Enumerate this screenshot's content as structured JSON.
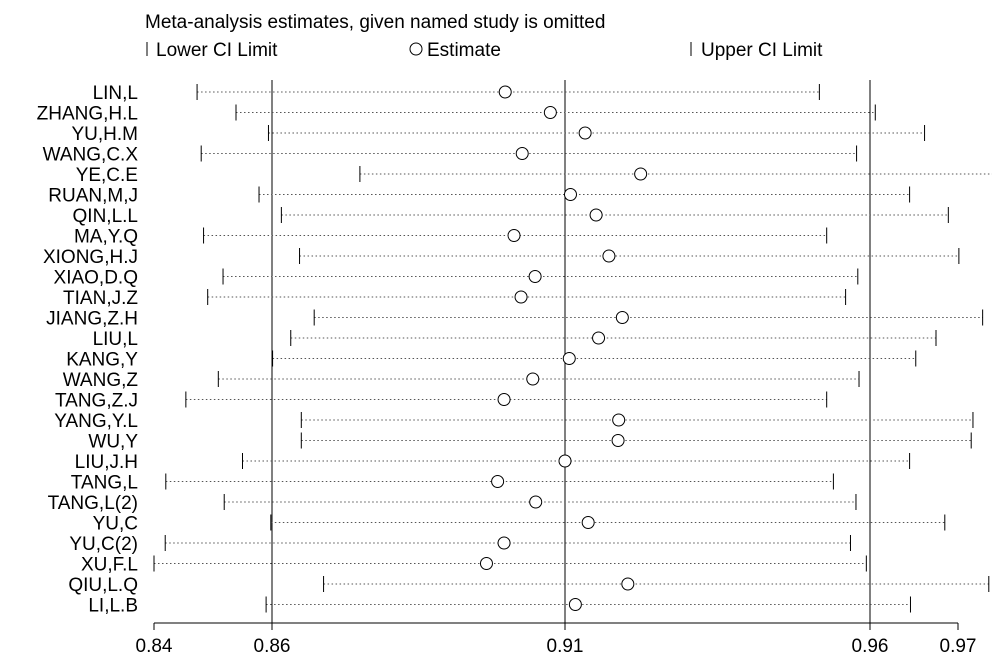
{
  "chart_data": {
    "type": "forest",
    "title": "Meta-analysis estimates, given named study is omitted",
    "legend": {
      "placement": "top",
      "lower": "Lower CI Limit",
      "estimate": "Estimate",
      "upper": "Upper CI Limit"
    },
    "xlim": [
      0.84,
      0.97
    ],
    "x_ticks": [
      0.84,
      0.86,
      0.91,
      0.96,
      0.97
    ],
    "x_tick_labels": [
      "0.84",
      "0.86",
      "0.91",
      "0.96",
      "0.97"
    ],
    "reference_lines": [
      0.86,
      0.91,
      0.96
    ],
    "studies": [
      {
        "name": "LIN,L",
        "lower": 0.8473,
        "estimate": 0.8998,
        "upper": 0.9517
      },
      {
        "name": "ZHANG,H.L",
        "lower": 0.8539,
        "estimate": 0.9075,
        "upper": 0.9606
      },
      {
        "name": "YU,H.M",
        "lower": 0.8594,
        "estimate": 0.9133,
        "upper": 0.9662
      },
      {
        "name": "WANG,C.X",
        "lower": 0.848,
        "estimate": 0.9027,
        "upper": 0.9578
      },
      {
        "name": "YE,C.E",
        "lower": 0.875,
        "estimate": 0.9224,
        "upper": 0.9752
      },
      {
        "name": "RUAN,M,J",
        "lower": 0.8578,
        "estimate": 0.9109,
        "upper": 0.9645
      },
      {
        "name": "QIN,L.L",
        "lower": 0.8616,
        "estimate": 0.9151,
        "upper": 0.9689
      },
      {
        "name": "MA,Y.Q",
        "lower": 0.8484,
        "estimate": 0.9013,
        "upper": 0.9529
      },
      {
        "name": "XIONG,H.J",
        "lower": 0.8647,
        "estimate": 0.9172,
        "upper": 0.9701
      },
      {
        "name": "XIAO,D.Q",
        "lower": 0.8517,
        "estimate": 0.9049,
        "upper": 0.958
      },
      {
        "name": "TIAN,J.Z",
        "lower": 0.8491,
        "estimate": 0.9025,
        "upper": 0.956
      },
      {
        "name": "JIANG,Z.H",
        "lower": 0.8672,
        "estimate": 0.9194,
        "upper": 0.9728
      },
      {
        "name": "LIU,L",
        "lower": 0.8632,
        "estimate": 0.9155,
        "upper": 0.9675
      },
      {
        "name": "KANG,Y",
        "lower": 0.8601,
        "estimate": 0.9107,
        "upper": 0.9652
      },
      {
        "name": "WANG,Z",
        "lower": 0.8509,
        "estimate": 0.9045,
        "upper": 0.9582
      },
      {
        "name": "TANG,Z.J",
        "lower": 0.8454,
        "estimate": 0.8996,
        "upper": 0.9529
      },
      {
        "name": "YANG,Y.L",
        "lower": 0.865,
        "estimate": 0.9188,
        "upper": 0.9717
      },
      {
        "name": "WU,Y",
        "lower": 0.865,
        "estimate": 0.9187,
        "upper": 0.9715
      },
      {
        "name": "LIU,J.H",
        "lower": 0.855,
        "estimate": 0.91,
        "upper": 0.9645
      },
      {
        "name": "TANG,L",
        "lower": 0.842,
        "estimate": 0.8985,
        "upper": 0.954
      },
      {
        "name": "TANG,L(2)",
        "lower": 0.8519,
        "estimate": 0.905,
        "upper": 0.9577
      },
      {
        "name": "YU,C",
        "lower": 0.8598,
        "estimate": 0.9138,
        "upper": 0.9685
      },
      {
        "name": "YU,C(2)",
        "lower": 0.8419,
        "estimate": 0.8996,
        "upper": 0.9568
      },
      {
        "name": "XU,F.L",
        "lower": 0.84,
        "estimate": 0.8966,
        "upper": 0.9594
      },
      {
        "name": "QIU,L.Q",
        "lower": 0.8688,
        "estimate": 0.9203,
        "upper": 0.9735
      },
      {
        "name": "LI,L.B",
        "lower": 0.859,
        "estimate": 0.9117,
        "upper": 0.9646
      }
    ]
  }
}
